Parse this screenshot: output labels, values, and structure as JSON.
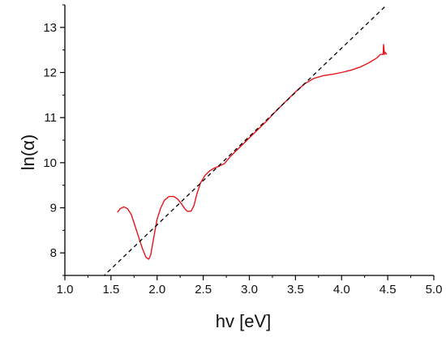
{
  "chart_data": {
    "type": "line",
    "title": "",
    "xlabel": "hv [eV]",
    "ylabel": "ln(α)",
    "xlim": [
      1.0,
      5.0
    ],
    "ylim": [
      7.5,
      13.5
    ],
    "xticks": [
      "1.0",
      "1.5",
      "2.0",
      "2.5",
      "3.0",
      "3.5",
      "4.0",
      "4.5",
      "5.0"
    ],
    "yticks": [
      "8",
      "9",
      "10",
      "11",
      "12",
      "13"
    ],
    "grid": false,
    "legend": "none",
    "series": [
      {
        "style": "solid",
        "color": "#e8141b",
        "x": [
          1.57,
          1.6,
          1.64,
          1.68,
          1.72,
          1.76,
          1.8,
          1.84,
          1.88,
          1.91,
          1.93,
          1.96,
          2.0,
          2.04,
          2.08,
          2.13,
          2.18,
          2.22,
          2.26,
          2.3,
          2.33,
          2.37,
          2.4,
          2.43,
          2.47,
          2.52,
          2.57,
          2.62,
          2.67,
          2.73,
          2.8,
          2.9,
          3.0,
          3.1,
          3.2,
          3.3,
          3.4,
          3.5,
          3.6,
          3.7,
          3.8,
          3.9,
          4.0,
          4.1,
          4.2,
          4.3,
          4.38,
          4.42,
          4.45,
          4.455,
          4.465,
          4.47,
          4.49
        ],
        "y": [
          8.9,
          8.98,
          9.02,
          8.98,
          8.85,
          8.6,
          8.35,
          8.1,
          7.9,
          7.86,
          7.95,
          8.3,
          8.75,
          9.0,
          9.17,
          9.25,
          9.25,
          9.2,
          9.1,
          8.98,
          8.92,
          8.93,
          9.05,
          9.3,
          9.55,
          9.72,
          9.82,
          9.88,
          9.92,
          9.98,
          10.15,
          10.35,
          10.55,
          10.75,
          10.95,
          11.17,
          11.37,
          11.57,
          11.75,
          11.87,
          11.93,
          11.96,
          12.0,
          12.05,
          12.12,
          12.22,
          12.32,
          12.4,
          12.4,
          12.62,
          12.4,
          12.45,
          12.4
        ]
      },
      {
        "style": "dashed",
        "color": "#000000",
        "x": [
          1.35,
          4.48
        ],
        "y": [
          7.35,
          13.48
        ]
      }
    ]
  }
}
